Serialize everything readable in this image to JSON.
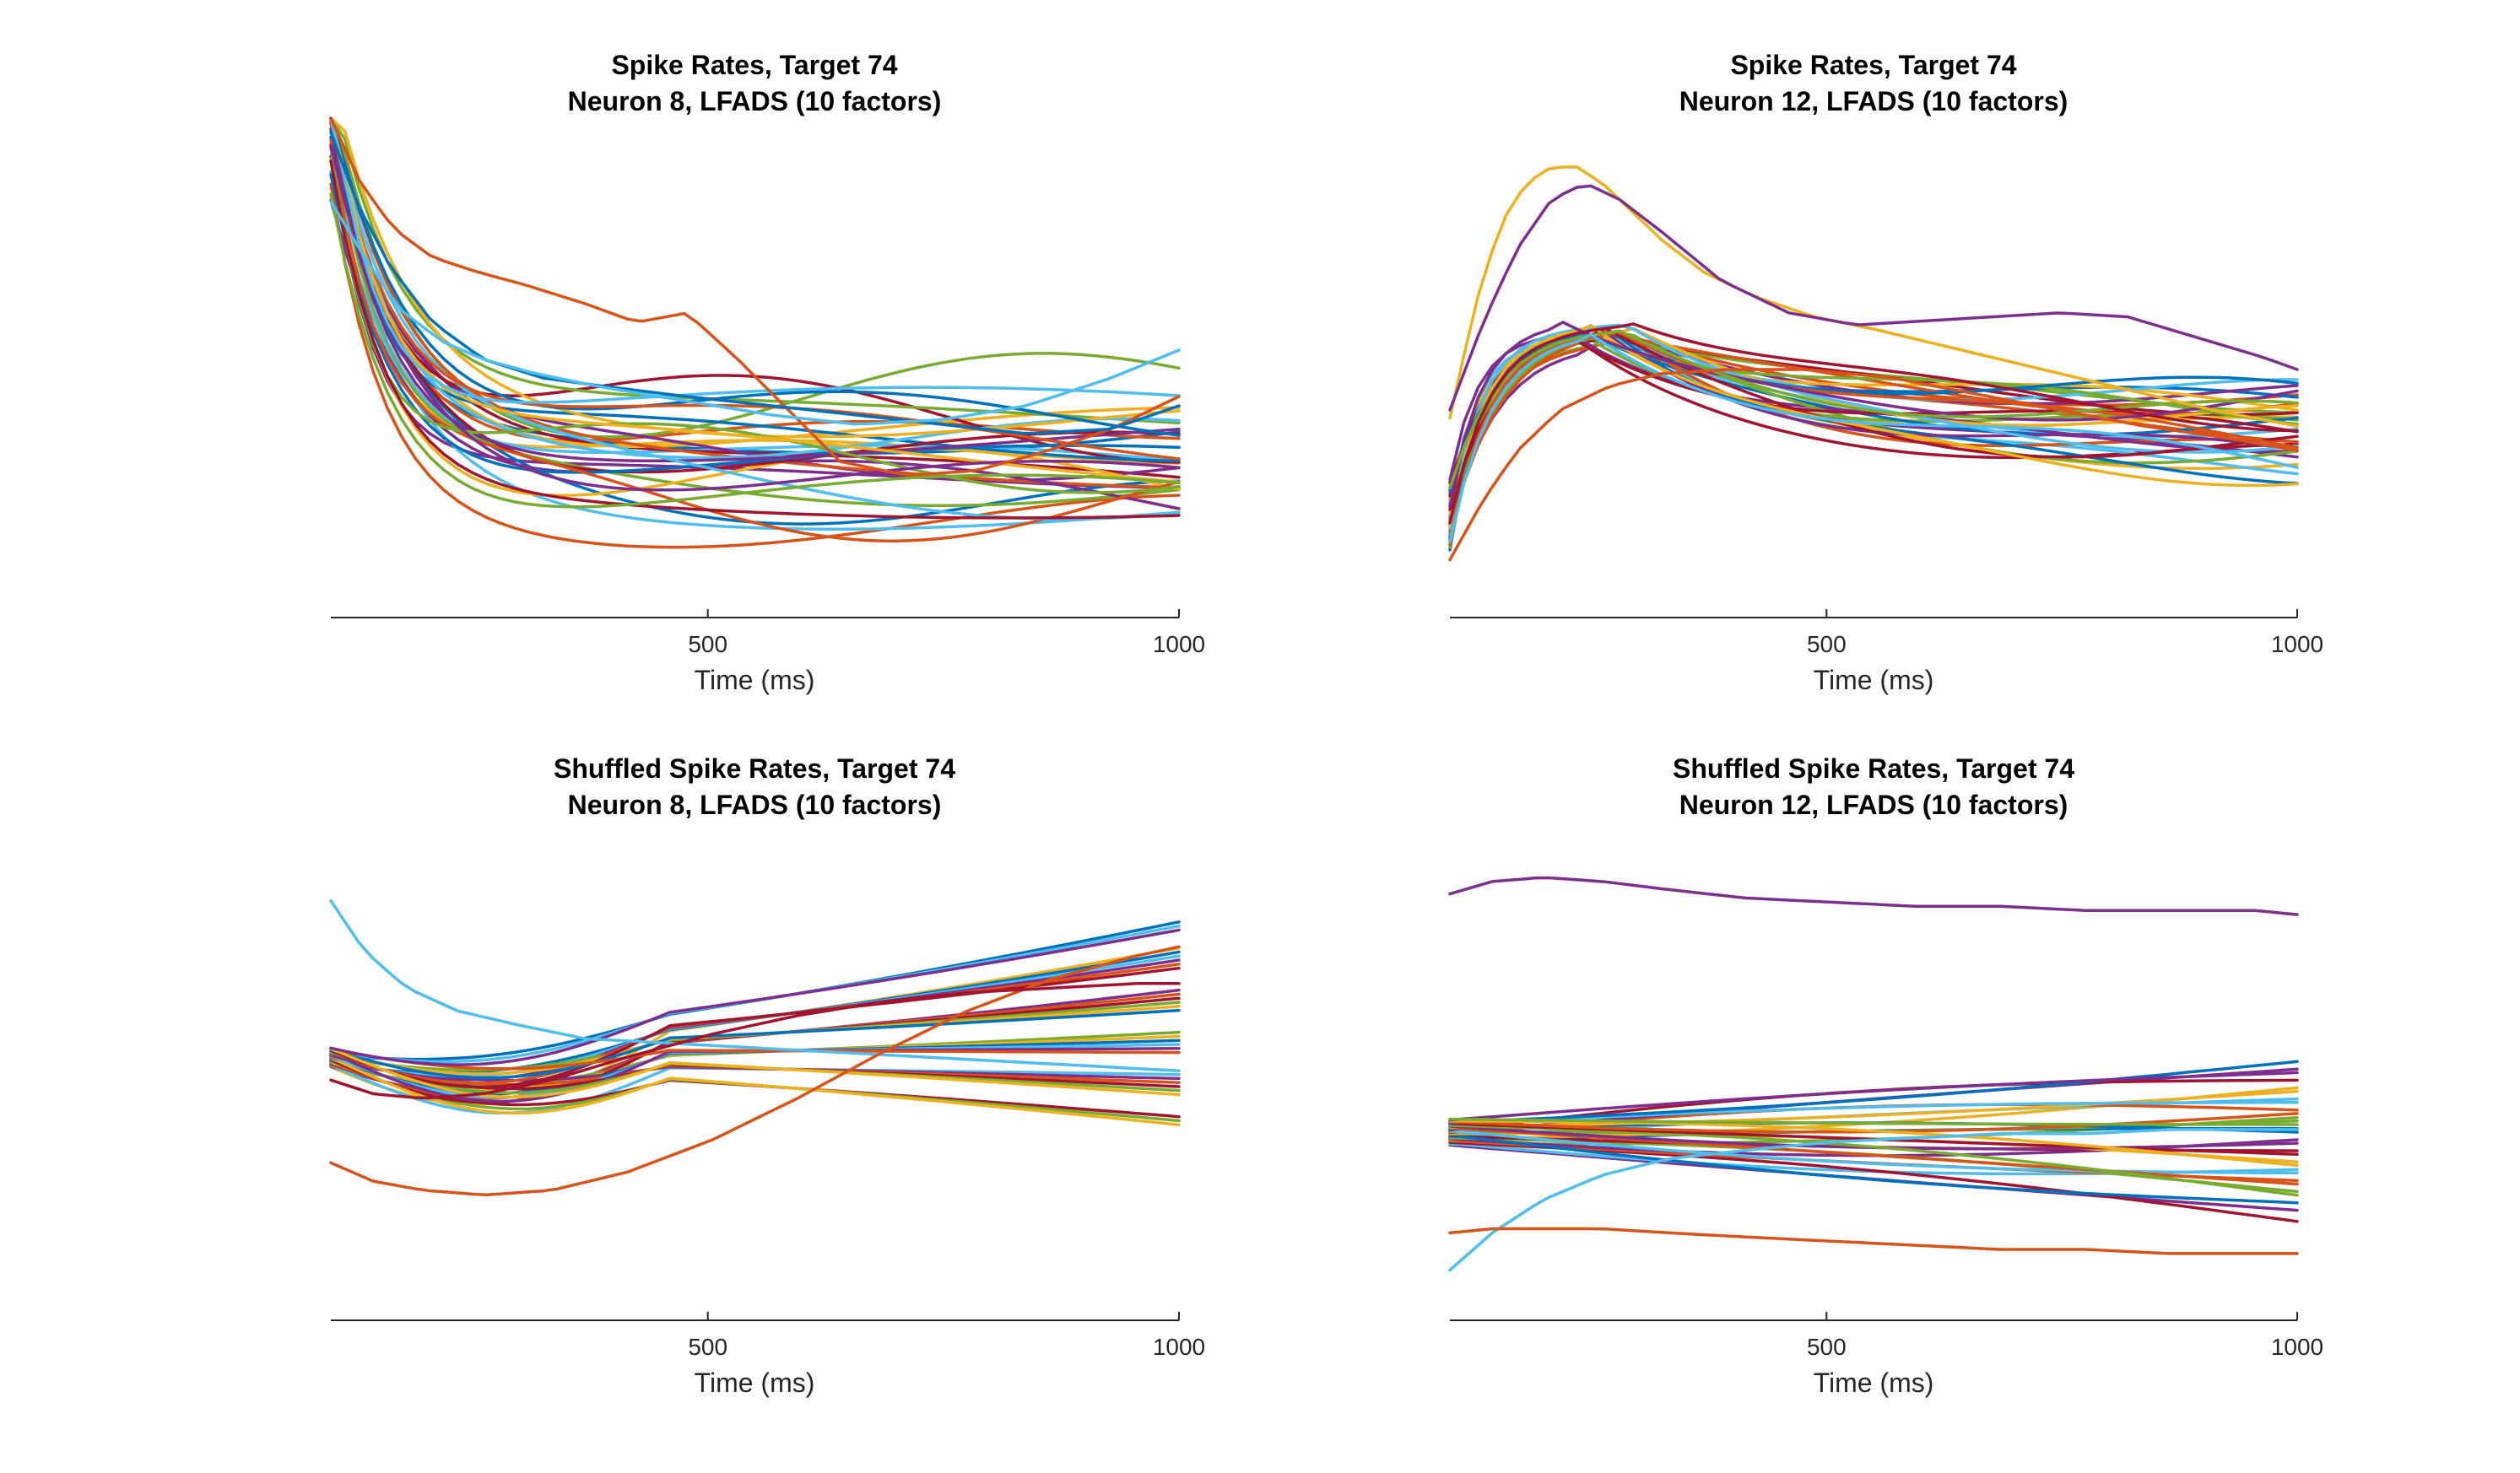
{
  "colors": [
    "#0072BD",
    "#D95319",
    "#EDB120",
    "#7E2F8E",
    "#77AC30",
    "#4DBEEE",
    "#A2142F"
  ],
  "chart_data": [
    {
      "type": "line",
      "title": [
        "Spike Rates, Target 74",
        "Neuron 8, LFADS (10 factors)"
      ],
      "xlabel": "Time (ms)",
      "xlim": [
        0,
        1000
      ],
      "ylim": [
        0,
        1
      ],
      "xticks": [
        500,
        1000
      ],
      "xticklabels": [
        "500",
        "1000"
      ],
      "grid": false,
      "shape": "decay",
      "seed": 11,
      "traces": 34,
      "series": [
        {
          "x": [
            0,
            35,
            75,
            120,
            170,
            230,
            300,
            360,
            420,
            480,
            540,
            600,
            680,
            760,
            840,
            920,
            1000
          ],
          "values": [
            1.0,
            0.86,
            0.76,
            0.7,
            0.67,
            0.64,
            0.6,
            0.56,
            0.58,
            0.48,
            0.37,
            0.26,
            0.23,
            0.24,
            0.28,
            0.33,
            0.4
          ],
          "color_index": 1
        },
        {
          "x": [
            0,
            30,
            70,
            120,
            180,
            250,
            330,
            420,
            520,
            620,
            720,
            820,
            920,
            1000
          ],
          "values": [
            0.97,
            0.82,
            0.68,
            0.56,
            0.48,
            0.44,
            0.42,
            0.4,
            0.38,
            0.36,
            0.34,
            0.32,
            0.33,
            0.38
          ],
          "color_index": 0
        },
        {
          "x": [
            0,
            40,
            80,
            130,
            180,
            240,
            320,
            420,
            520,
            620,
            720,
            820,
            920,
            1000
          ],
          "values": [
            0.82,
            0.7,
            0.59,
            0.52,
            0.48,
            0.45,
            0.42,
            0.39,
            0.36,
            0.34,
            0.35,
            0.38,
            0.44,
            0.5
          ],
          "color_index": 5
        }
      ]
    },
    {
      "type": "line",
      "title": [
        "Spike Rates, Target 74",
        "Neuron 12, LFADS (10 factors)"
      ],
      "xlabel": "Time (ms)",
      "xlim": [
        0,
        1000
      ],
      "ylim": [
        0,
        1
      ],
      "xticks": [
        500,
        1000
      ],
      "xticklabels": [
        "500",
        "1000"
      ],
      "grid": false,
      "shape": "peak",
      "seed": 23,
      "traces": 34,
      "series": [
        {
          "x": [
            0,
            30,
            60,
            90,
            120,
            150,
            180,
            210,
            250,
            300,
            360,
            430,
            500,
            580,
            660,
            740,
            820,
            900,
            1000
          ],
          "values": [
            0.38,
            0.66,
            0.86,
            0.96,
            1.0,
            1.0,
            0.96,
            0.9,
            0.82,
            0.74,
            0.68,
            0.63,
            0.6,
            0.56,
            0.52,
            0.48,
            0.44,
            0.4,
            0.36
          ],
          "color_index": 2
        },
        {
          "x": [
            0,
            40,
            80,
            130,
            190,
            250,
            330,
            420,
            520,
            620,
            720,
            820,
            920,
            1000
          ],
          "values": [
            0.03,
            0.18,
            0.3,
            0.4,
            0.46,
            0.49,
            0.5,
            0.5,
            0.48,
            0.44,
            0.4,
            0.36,
            0.33,
            0.3
          ],
          "color_index": 1
        },
        {
          "x": [
            0,
            40,
            80,
            120,
            160,
            200,
            250,
            320,
            400,
            480,
            560,
            640,
            720,
            800,
            880,
            960,
            1000
          ],
          "values": [
            0.4,
            0.62,
            0.8,
            0.92,
            0.96,
            0.92,
            0.84,
            0.72,
            0.64,
            0.61,
            0.62,
            0.63,
            0.64,
            0.63,
            0.58,
            0.53,
            0.5
          ],
          "color_index": 3
        }
      ]
    },
    {
      "type": "line",
      "title": [
        "Shuffled Spike Rates, Target 74",
        "Neuron 8, LFADS (10 factors)"
      ],
      "xlabel": "Time (ms)",
      "xlim": [
        0,
        1000
      ],
      "ylim": [
        0,
        1
      ],
      "xticks": [
        500,
        1000
      ],
      "xticklabels": [
        "500",
        "1000"
      ],
      "grid": false,
      "shape": "shuffle8",
      "seed": 37,
      "traces": 30,
      "series": [
        {
          "x": [
            0,
            40,
            90,
            150,
            220,
            300,
            400,
            500,
            600,
            700,
            800,
            900,
            1000
          ],
          "values": [
            0.83,
            0.72,
            0.64,
            0.59,
            0.56,
            0.53,
            0.52,
            0.51,
            0.5,
            0.49,
            0.48,
            0.47,
            0.46
          ],
          "color_index": 5
        },
        {
          "x": [
            0,
            50,
            110,
            180,
            260,
            350,
            450,
            550,
            650,
            750,
            850,
            950,
            1000
          ],
          "values": [
            0.26,
            0.22,
            0.2,
            0.19,
            0.2,
            0.24,
            0.31,
            0.4,
            0.5,
            0.59,
            0.66,
            0.71,
            0.73
          ],
          "color_index": 1
        },
        {
          "x": [
            0,
            50,
            110,
            180,
            260,
            350,
            450,
            550,
            650,
            750,
            850,
            950,
            1000
          ],
          "values": [
            0.44,
            0.41,
            0.4,
            0.41,
            0.44,
            0.49,
            0.54,
            0.58,
            0.61,
            0.63,
            0.64,
            0.65,
            0.65
          ],
          "color_index": 6
        }
      ]
    },
    {
      "type": "line",
      "title": [
        "Shuffled Spike Rates, Target 74",
        "Neuron 12, LFADS (10 factors)"
      ],
      "xlabel": "Time (ms)",
      "xlim": [
        0,
        1000
      ],
      "ylim": [
        0,
        1
      ],
      "xticks": [
        500,
        1000
      ],
      "xticklabels": [
        "500",
        "1000"
      ],
      "grid": false,
      "shape": "shuffle12",
      "seed": 53,
      "traces": 30,
      "series": [
        {
          "x": [
            0,
            50,
            110,
            180,
            260,
            350,
            450,
            550,
            650,
            750,
            850,
            950,
            1000
          ],
          "values": [
            0.96,
            0.99,
            1.0,
            0.99,
            0.97,
            0.95,
            0.94,
            0.93,
            0.93,
            0.92,
            0.92,
            0.92,
            0.91
          ],
          "color_index": 3
        },
        {
          "x": [
            0,
            50,
            110,
            180,
            260,
            350,
            450,
            550,
            650,
            750,
            850,
            950,
            1000
          ],
          "values": [
            0.05,
            0.14,
            0.22,
            0.28,
            0.32,
            0.34,
            0.36,
            0.37,
            0.38,
            0.38,
            0.39,
            0.39,
            0.39
          ],
          "color_index": 5
        },
        {
          "x": [
            0,
            50,
            110,
            180,
            260,
            350,
            450,
            550,
            650,
            750,
            850,
            950,
            1000
          ],
          "values": [
            0.14,
            0.15,
            0.15,
            0.15,
            0.14,
            0.13,
            0.12,
            0.11,
            0.1,
            0.1,
            0.09,
            0.09,
            0.09
          ],
          "color_index": 1
        }
      ]
    }
  ]
}
